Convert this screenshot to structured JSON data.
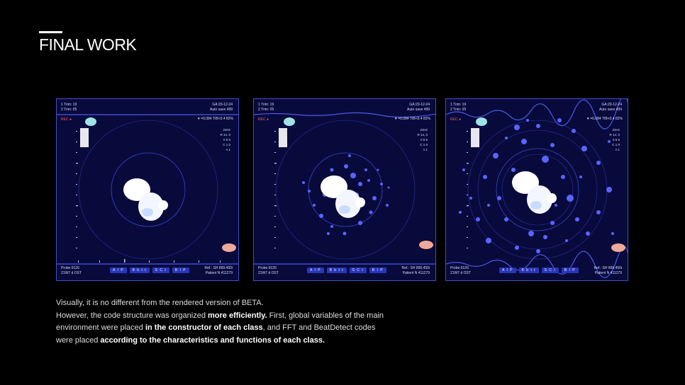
{
  "slide": {
    "title": "FINAL WORK",
    "description": {
      "line1": "Visually, it is no different from the rendered version of BETA.",
      "p2_a": "However, the code structure was organized ",
      "p2_b": "more efficiently.",
      "p2_c": " First, global variables of the main environment were placed ",
      "p2_d": "in the constructor of each class",
      "p2_e": ", and FFT and BeatDetect codes were placed ",
      "p2_f": "according to the characteristics and functions of each class."
    }
  },
  "panel": {
    "trim1": "1 Trim: 19",
    "trim2": "2 Trim: 05",
    "ga": "GA:20-12-24",
    "autosave": "Auto save 499",
    "rec": "REC ●",
    "metric": "♥ =0.084 TIB<0.4 82%",
    "params": [
      "23Hz",
      "R 14. 0",
      "0 6 5",
      "C 1 0",
      "A 1"
    ],
    "buttons": [
      "A I P",
      "B b t t",
      "S C I",
      "B I P"
    ],
    "probe": "Probe:9126",
    "date": "21W7 d OST",
    "ref": "Ref.: SH 899.450i",
    "patient": "Patient N 411279"
  },
  "colors": {
    "panel_bg": "#080a3c",
    "accent": "#5a64ff",
    "border": "#4150c8"
  }
}
